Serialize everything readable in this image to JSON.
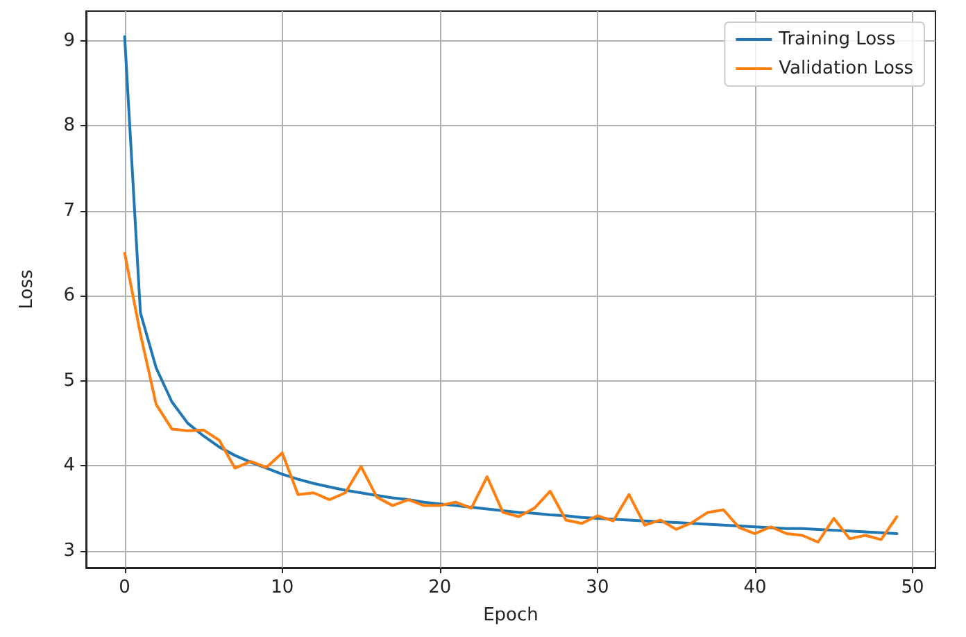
{
  "chart_data": {
    "type": "line",
    "xlabel": "Epoch",
    "ylabel": "Loss",
    "x": [
      0,
      1,
      2,
      3,
      4,
      5,
      6,
      7,
      8,
      9,
      10,
      11,
      12,
      13,
      14,
      15,
      16,
      17,
      18,
      19,
      20,
      21,
      22,
      23,
      24,
      25,
      26,
      27,
      28,
      29,
      30,
      31,
      32,
      33,
      34,
      35,
      36,
      37,
      38,
      39,
      40,
      41,
      42,
      43,
      44,
      45,
      46,
      47,
      48,
      49
    ],
    "series": [
      {
        "name": "Training Loss",
        "color": "#1f77b4",
        "values": [
          9.05,
          5.8,
          5.15,
          4.75,
          4.5,
          4.35,
          4.22,
          4.12,
          4.04,
          3.97,
          3.9,
          3.84,
          3.79,
          3.75,
          3.71,
          3.68,
          3.65,
          3.62,
          3.6,
          3.57,
          3.55,
          3.53,
          3.51,
          3.49,
          3.47,
          3.45,
          3.44,
          3.42,
          3.41,
          3.39,
          3.38,
          3.37,
          3.36,
          3.35,
          3.34,
          3.33,
          3.32,
          3.31,
          3.3,
          3.29,
          3.28,
          3.27,
          3.26,
          3.26,
          3.25,
          3.24,
          3.23,
          3.22,
          3.21,
          3.2
        ]
      },
      {
        "name": "Validation Loss",
        "color": "#ff7f0e",
        "values": [
          6.5,
          5.55,
          4.72,
          4.43,
          4.41,
          4.42,
          4.3,
          3.97,
          4.05,
          3.98,
          4.15,
          3.66,
          3.68,
          3.6,
          3.68,
          3.99,
          3.63,
          3.53,
          3.6,
          3.53,
          3.53,
          3.57,
          3.5,
          3.87,
          3.45,
          3.4,
          3.5,
          3.7,
          3.36,
          3.32,
          3.41,
          3.35,
          3.66,
          3.3,
          3.36,
          3.25,
          3.33,
          3.45,
          3.48,
          3.27,
          3.2,
          3.28,
          3.2,
          3.18,
          3.1,
          3.38,
          3.14,
          3.18,
          3.13,
          3.4
        ]
      }
    ],
    "xlim": [
      -2.45,
      51.45
    ],
    "xticks": [
      0,
      10,
      20,
      30,
      40,
      50
    ],
    "ylim": [
      2.8,
      9.35
    ],
    "yticks": [
      3,
      4,
      5,
      6,
      7,
      8,
      9
    ],
    "grid": true,
    "legend": "top right",
    "marker": "none",
    "line_style": "solid"
  }
}
